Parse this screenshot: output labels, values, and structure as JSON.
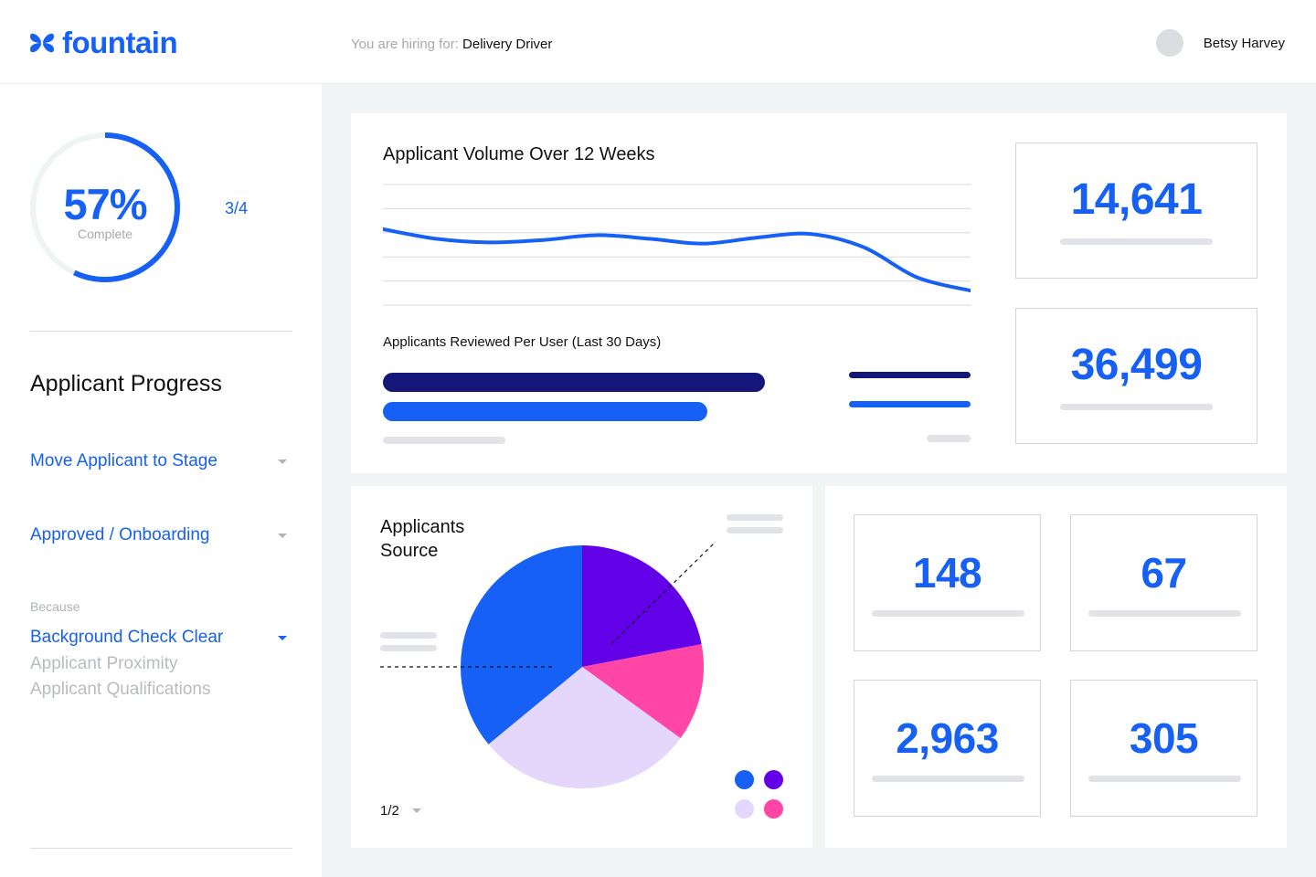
{
  "header": {
    "logo_text": "fountain",
    "hiring_label": "You are hiring for:",
    "hiring_role": "Delivery Driver",
    "user_name": "Betsy Harvey"
  },
  "sidebar": {
    "progress_percent": "57%",
    "progress_fraction": 0.57,
    "progress_label": "Complete",
    "step": "3/4",
    "section_title": "Applicant Progress",
    "stage_dropdown": "Move Applicant to Stage",
    "status_dropdown": "Approved / Onboarding",
    "because_label": "Because",
    "reason_selected": "Background Check Clear",
    "reason_options": [
      "Applicant Proximity",
      "Applicant Qualifications"
    ]
  },
  "volume_card": {
    "title": "Applicant Volume Over 12 Weeks",
    "reviewed_title": "Applicants Reviewed Per User (Last 30 Days)"
  },
  "stats_top": [
    {
      "value": "14,641"
    },
    {
      "value": "36,499"
    }
  ],
  "source_card": {
    "title_line1": "Applicants",
    "title_line2": "Source",
    "pager": "1/2"
  },
  "stats_grid": [
    {
      "value": "148"
    },
    {
      "value": "67"
    },
    {
      "value": "2,963"
    },
    {
      "value": "305"
    }
  ],
  "colors": {
    "accent": "#1660f5",
    "navy": "#14167a",
    "purple": "#6200e8",
    "pink": "#ff45a5",
    "lavender": "#e5d7fc",
    "muted": "#a6a9ad"
  },
  "chart_data": [
    {
      "type": "line",
      "title": "Applicant Volume Over 12 Weeks",
      "x": [
        1,
        2,
        3,
        4,
        5,
        6,
        7,
        8,
        9,
        10,
        11,
        12
      ],
      "series": [
        {
          "values": [
            6.3,
            5.5,
            5.2,
            5.4,
            5.8,
            5.5,
            5.1,
            5.6,
            5.9,
            4.8,
            2.3,
            1.2
          ]
        }
      ],
      "ylim": [
        0,
        10
      ],
      "grid": true
    },
    {
      "type": "bar",
      "title": "Applicants Reviewed Per User (Last 30 Days)",
      "orientation": "horizontal",
      "values": [
        100,
        85
      ],
      "colors": [
        "#14167a",
        "#1660f5"
      ]
    },
    {
      "type": "pie",
      "title": "Applicants Source",
      "values": [
        36,
        22,
        13,
        29
      ],
      "colors": [
        "#1660f5",
        "#6200e8",
        "#ff45a5",
        "#e5d7fc"
      ]
    }
  ]
}
